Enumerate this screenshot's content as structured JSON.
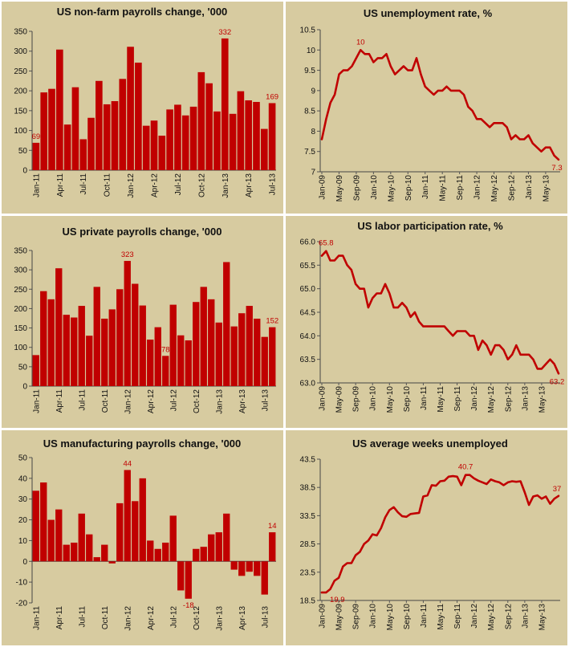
{
  "chart_data": [
    {
      "type": "bar",
      "title": "US non-farm payrolls change, '000",
      "ylim": [
        0,
        350
      ],
      "yticks": [
        0,
        50,
        100,
        150,
        200,
        250,
        300,
        350
      ],
      "xtick_labels": [
        "Jan-11",
        "Apr-11",
        "Jul-11",
        "Oct-11",
        "Jan-12",
        "Apr-12",
        "Jul-12",
        "Oct-12",
        "Jan-13",
        "Apr-13",
        "Jul-13"
      ],
      "values": [
        69,
        196,
        205,
        304,
        115,
        209,
        78,
        132,
        225,
        166,
        174,
        230,
        311,
        271,
        112,
        125,
        87,
        153,
        165,
        138,
        160,
        247,
        219,
        148,
        332,
        142,
        199,
        176,
        172,
        104,
        169
      ],
      "annotations": [
        {
          "index": 0,
          "text": "69"
        },
        {
          "index": 24,
          "text": "332"
        },
        {
          "index": 30,
          "text": "169"
        }
      ],
      "color": "#c00000"
    },
    {
      "type": "line",
      "title": "US unemployment rate, %",
      "ylim": [
        7,
        10.5
      ],
      "yticks": [
        7,
        7.5,
        8,
        8.5,
        9,
        9.5,
        10,
        10.5
      ],
      "xtick_labels": [
        "Jan-09",
        "May-09",
        "Sep-09",
        "Jan-10",
        "May-10",
        "Sep-10",
        "Jan-11",
        "May-11",
        "Sep-11",
        "Jan-12",
        "May-12",
        "Sep-12",
        "Jan-13",
        "May-13"
      ],
      "values": [
        7.8,
        8.3,
        8.7,
        8.9,
        9.4,
        9.5,
        9.5,
        9.6,
        9.8,
        10.0,
        9.9,
        9.9,
        9.7,
        9.8,
        9.8,
        9.9,
        9.6,
        9.4,
        9.5,
        9.6,
        9.5,
        9.5,
        9.8,
        9.4,
        9.1,
        9.0,
        8.9,
        9.0,
        9.0,
        9.1,
        9.0,
        9.0,
        9.0,
        8.9,
        8.6,
        8.5,
        8.3,
        8.3,
        8.2,
        8.1,
        8.2,
        8.2,
        8.2,
        8.1,
        7.8,
        7.9,
        7.8,
        7.8,
        7.9,
        7.7,
        7.6,
        7.5,
        7.6,
        7.6,
        7.4,
        7.3
      ],
      "annotations": [
        {
          "index": 9,
          "text": "10"
        },
        {
          "index": 55,
          "text": "7.3"
        }
      ],
      "color": "#c00000"
    },
    {
      "type": "bar",
      "title": "US private payrolls change, '000",
      "ylim": [
        0,
        350
      ],
      "yticks": [
        0,
        50,
        100,
        150,
        200,
        250,
        300,
        350
      ],
      "xtick_labels": [
        "Jan-11",
        "Apr-11",
        "Jul-11",
        "Oct-11",
        "Jan-12",
        "Apr-12",
        "Jul-12",
        "Oct-12",
        "Jan-13",
        "Apr-13",
        "Jul-13"
      ],
      "values": [
        80,
        245,
        224,
        304,
        184,
        177,
        207,
        130,
        256,
        174,
        198,
        250,
        323,
        264,
        208,
        120,
        152,
        78,
        210,
        131,
        118,
        217,
        256,
        224,
        164,
        320,
        154,
        188,
        207,
        174,
        127,
        152
      ],
      "annotations": [
        {
          "index": 12,
          "text": "323"
        },
        {
          "index": 17,
          "text": "78"
        },
        {
          "index": 31,
          "text": "152"
        }
      ],
      "color": "#c00000"
    },
    {
      "type": "line",
      "title": "US labor participation rate, %",
      "ylim": [
        63.0,
        66.0
      ],
      "yticks": [
        "63.0",
        "63.5",
        "64.0",
        "64.5",
        "65.0",
        "65.5",
        "66.0"
      ],
      "xtick_labels": [
        "Jan-09",
        "May-09",
        "Sep-09",
        "Jan-10",
        "May-10",
        "Sep-10",
        "Jan-11",
        "May-11",
        "Sep-11",
        "Jan-12",
        "May-12",
        "Sep-12",
        "Jan-13",
        "May-13"
      ],
      "values": [
        65.7,
        65.8,
        65.6,
        65.6,
        65.7,
        65.7,
        65.5,
        65.4,
        65.1,
        65.0,
        65.0,
        64.6,
        64.8,
        64.9,
        64.9,
        65.1,
        64.9,
        64.6,
        64.6,
        64.7,
        64.6,
        64.4,
        64.5,
        64.3,
        64.2,
        64.2,
        64.2,
        64.2,
        64.2,
        64.2,
        64.1,
        64.0,
        64.1,
        64.1,
        64.1,
        64.0,
        64.0,
        63.7,
        63.9,
        63.8,
        63.6,
        63.8,
        63.8,
        63.7,
        63.5,
        63.6,
        63.8,
        63.6,
        63.6,
        63.6,
        63.5,
        63.3,
        63.3,
        63.4,
        63.5,
        63.4,
        63.2
      ],
      "annotations": [
        {
          "index": 1,
          "text": "65.8"
        },
        {
          "index": 56,
          "text": "63.2"
        }
      ],
      "color": "#c00000"
    },
    {
      "type": "bar",
      "title": "US manufacturing payrolls change, '000",
      "ylim": [
        -20,
        50
      ],
      "yticks": [
        -20,
        -10,
        0,
        10,
        20,
        30,
        40,
        50
      ],
      "xtick_labels": [
        "Jan-11",
        "Apr-11",
        "Jul-11",
        "Oct-11",
        "Jan-12",
        "Apr-12",
        "Jul-12",
        "Oct-12",
        "Jan-13",
        "Apr-13",
        "Jul-13"
      ],
      "values": [
        34,
        38,
        20,
        25,
        8,
        9,
        23,
        13,
        2,
        8,
        -1,
        28,
        44,
        29,
        40,
        10,
        6,
        9,
        22,
        -14,
        -18,
        6,
        7,
        13,
        14,
        23,
        -4,
        -7,
        -5,
        -7,
        -16,
        14
      ],
      "annotations": [
        {
          "index": 12,
          "text": "44"
        },
        {
          "index": 20,
          "text": "-18"
        },
        {
          "index": 31,
          "text": "14"
        }
      ],
      "color": "#c00000"
    },
    {
      "type": "line",
      "title": "US average weeks unemployed",
      "ylim": [
        18.5,
        43.5
      ],
      "yticks": [
        18.5,
        23.5,
        28.5,
        33.5,
        38.5,
        43.5
      ],
      "xtick_labels": [
        "Jan-09",
        "May-09",
        "Sep-09",
        "Jan-10",
        "May-10",
        "Sep-10",
        "Jan-11",
        "May-11",
        "Sep-11",
        "Jan-12",
        "May-12",
        "Sep-12",
        "Jan-13",
        "May-13"
      ],
      "values": [
        19.9,
        19.9,
        20.5,
        22.0,
        22.5,
        24.5,
        25.1,
        25.1,
        26.5,
        27.1,
        28.5,
        29.1,
        30.2,
        30.0,
        31.3,
        33.2,
        34.5,
        35.0,
        34.1,
        33.4,
        33.3,
        33.8,
        33.9,
        34.0,
        36.9,
        37.1,
        38.9,
        38.8,
        39.6,
        39.7,
        40.4,
        40.5,
        40.4,
        38.9,
        40.7,
        40.7,
        40.1,
        39.7,
        39.4,
        39.1,
        39.9,
        39.6,
        39.4,
        38.9,
        39.4,
        39.6,
        39.5,
        39.6,
        37.6,
        35.4,
        36.9,
        37.1,
        36.5,
        36.9,
        35.6,
        36.5,
        37.0
      ],
      "annotations": [
        {
          "index": 1,
          "text": "19.9"
        },
        {
          "index": 34,
          "text": "40.7"
        },
        {
          "index": 56,
          "text": "37"
        }
      ],
      "color": "#c00000"
    }
  ]
}
